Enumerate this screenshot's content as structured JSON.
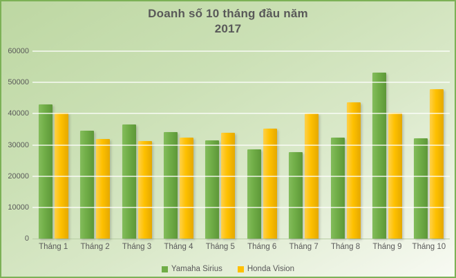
{
  "chart_data": {
    "type": "bar",
    "title": "Doanh số 10 tháng đầu năm 2017",
    "title_lines": [
      "Doanh số 10 tháng đầu năm",
      "2017"
    ],
    "categories": [
      "Tháng 1",
      "Tháng 2",
      "Tháng 3",
      "Tháng 4",
      "Tháng 5",
      "Tháng 6",
      "Tháng 7",
      "Tháng 8",
      "Tháng 9",
      "Tháng 10"
    ],
    "series": [
      {
        "name": "Yamaha Sirius",
        "color": "#70AD47",
        "gradient": [
          "#83bd5b",
          "#70ad47",
          "#5d9738"
        ],
        "values": [
          43000,
          34600,
          36500,
          34000,
          31400,
          28600,
          27600,
          32400,
          53100,
          32000
        ]
      },
      {
        "name": "Honda Vision",
        "color": "#FFC000",
        "gradient": [
          "#ffd04a",
          "#fec000",
          "#e4a900"
        ],
        "values": [
          40300,
          31800,
          31300,
          32300,
          33900,
          35100,
          40100,
          43700,
          40300,
          47800
        ]
      }
    ],
    "xlabel": "",
    "ylabel": "",
    "ylim": [
      0,
      60000
    ],
    "yticks": [
      0,
      10000,
      20000,
      30000,
      40000,
      50000,
      60000
    ],
    "grid": true,
    "legend_position": "bottom"
  },
  "colors": {
    "background_top": "#bdd7a2",
    "background_bottom": "#f8faf3",
    "frame_border": "#7cb156",
    "gridline": "#ffffff",
    "text": "#595959",
    "series_green": "#70AD47",
    "series_yellow": "#FFC000"
  }
}
